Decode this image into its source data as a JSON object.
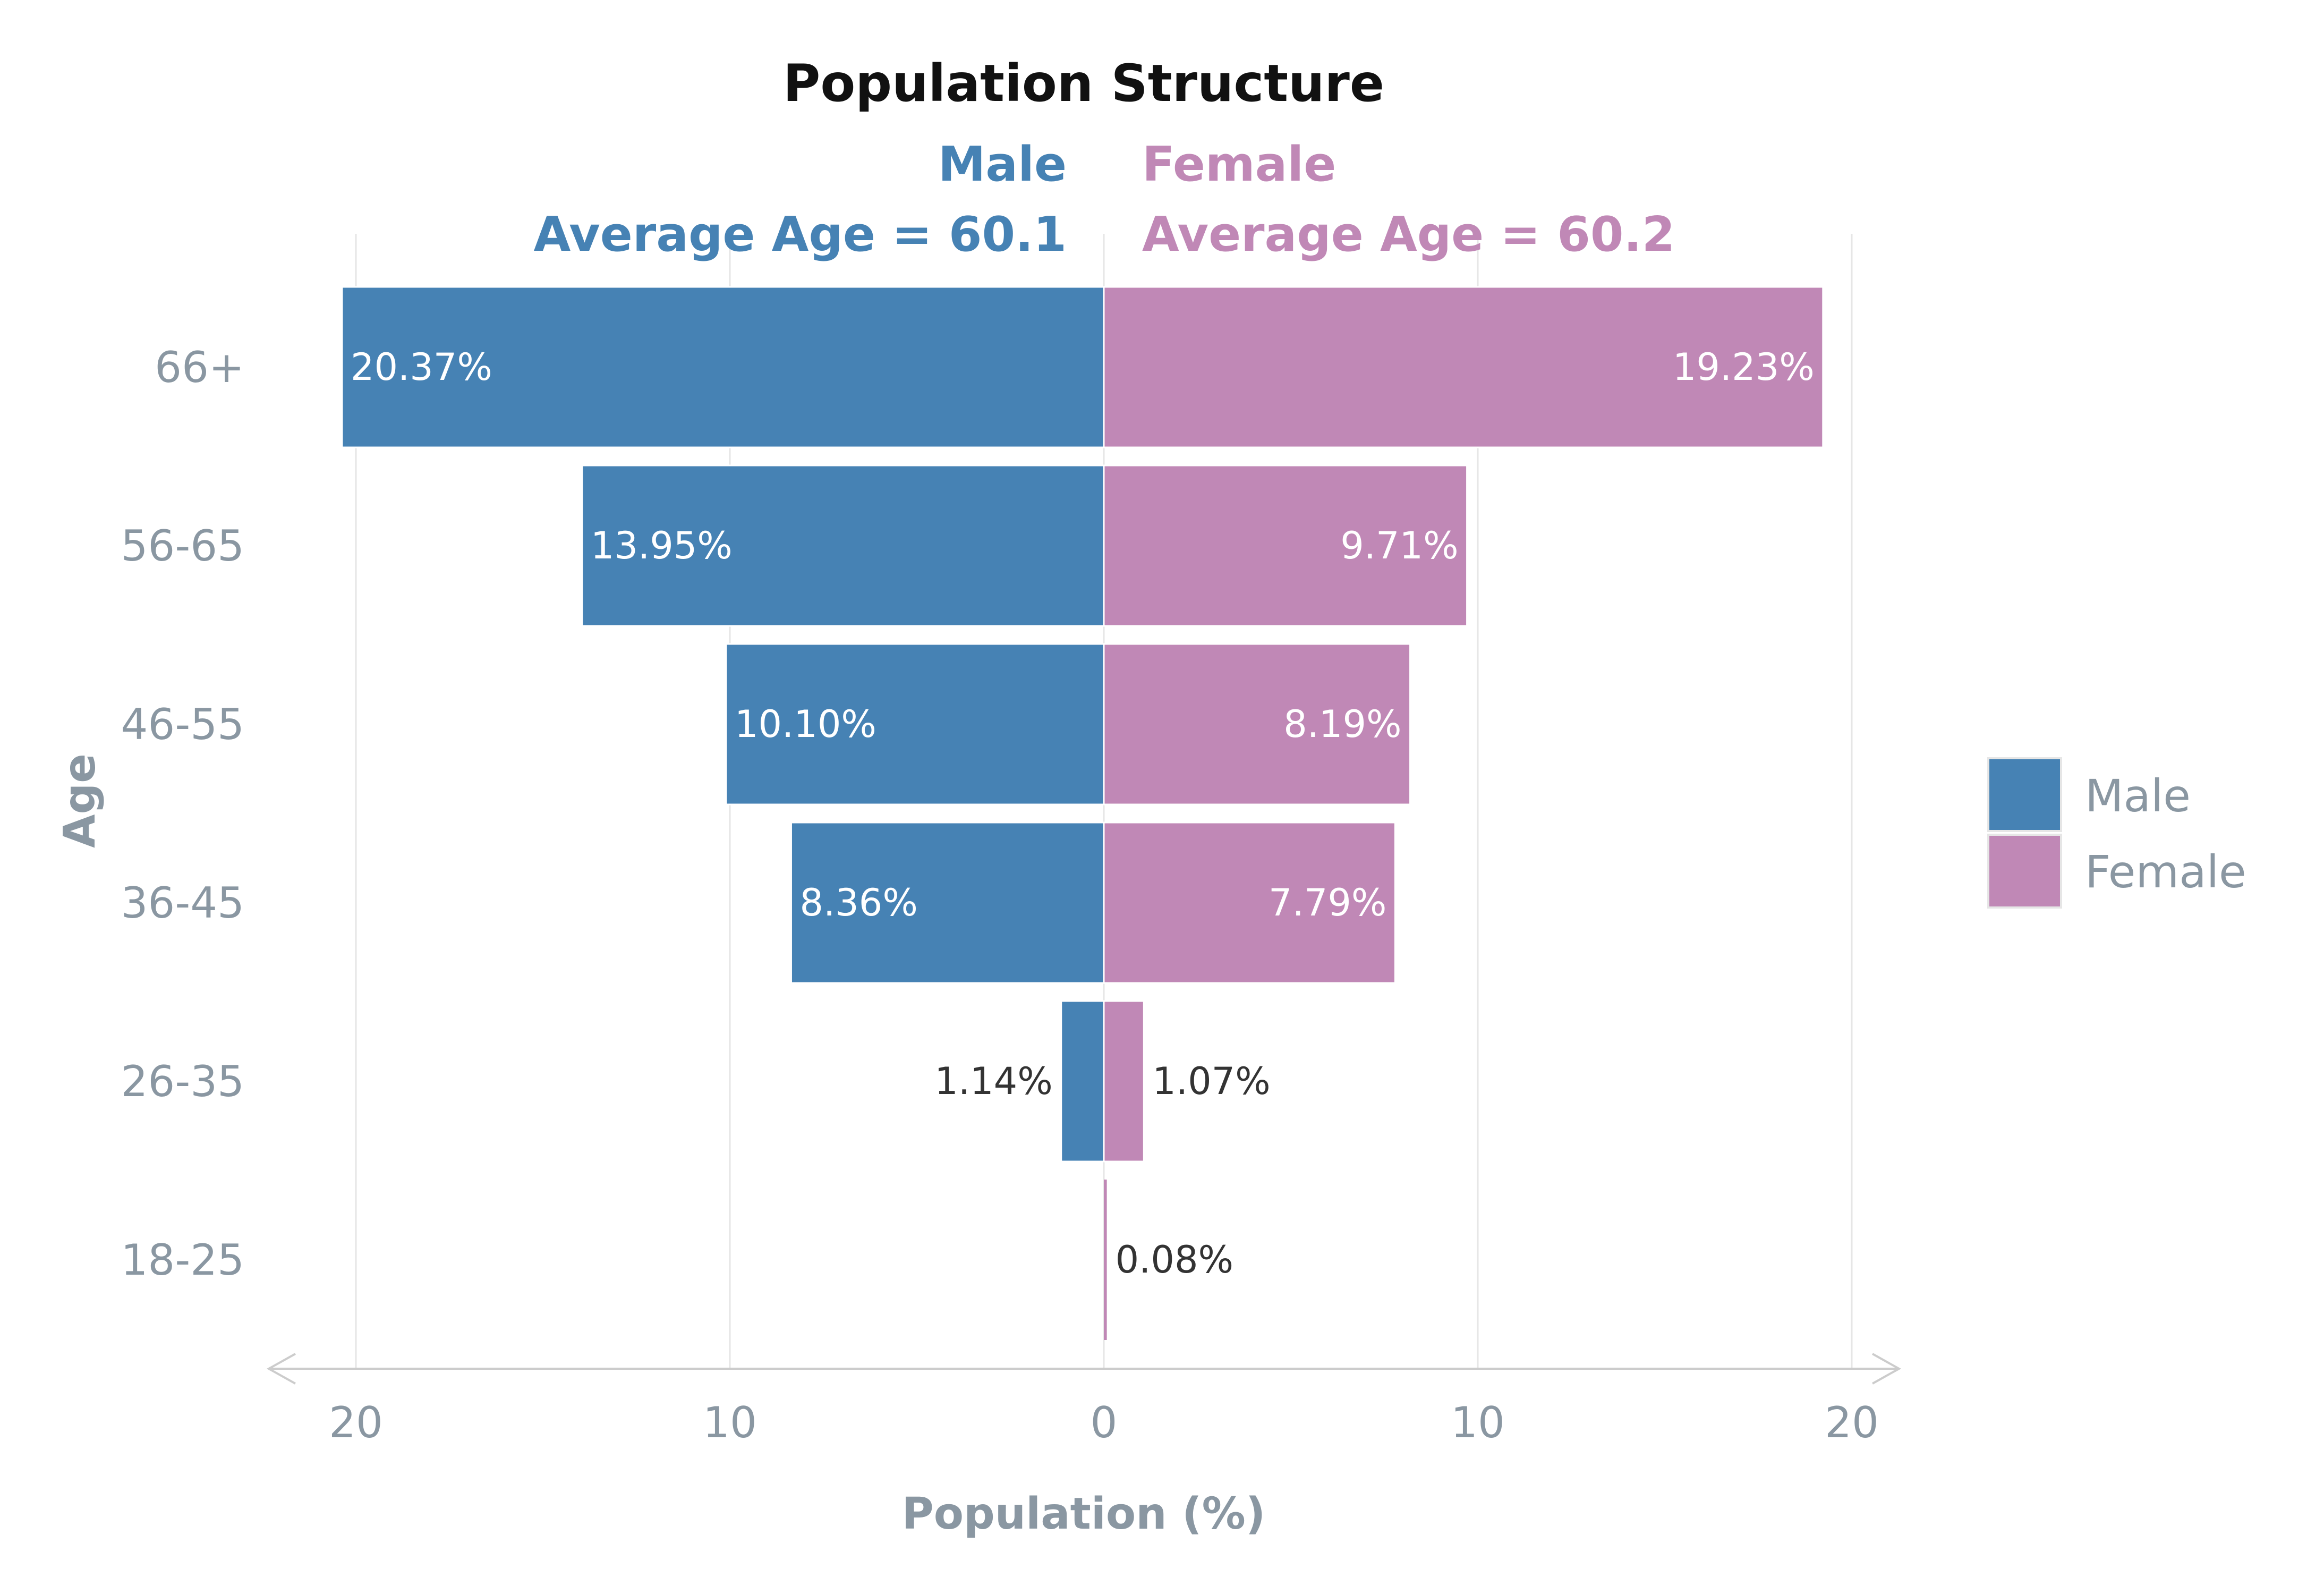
{
  "chart_data": {
    "type": "bar",
    "orientation": "horizontal",
    "title": "Population Structure",
    "xlabel": "Population (%)",
    "ylabel": "Age",
    "xlim": [
      -20,
      20
    ],
    "x_ticks": [
      -20,
      -10,
      0,
      10,
      20
    ],
    "x_tick_labels": [
      "20",
      "10",
      "0",
      "10",
      "20"
    ],
    "grid": "vertical",
    "legend_position": "right",
    "categories": [
      "66+",
      "56-65",
      "46-55",
      "36-45",
      "26-35",
      "18-25"
    ],
    "series": [
      {
        "name": "Male",
        "color": "#4682b4",
        "side": "left",
        "values": [
          20.37,
          13.95,
          10.1,
          8.36,
          1.14,
          0
        ],
        "labels": [
          "20.37%",
          "13.95%",
          "10.10%",
          "8.36%",
          "1.14%",
          ""
        ],
        "header": "Male",
        "average_label": "Average Age = 60.1"
      },
      {
        "name": "Female",
        "color": "#c088b6",
        "side": "right",
        "values": [
          19.23,
          9.71,
          8.19,
          7.79,
          1.07,
          0.08
        ],
        "labels": [
          "19.23%",
          "9.71%",
          "8.19%",
          "7.79%",
          "1.07%",
          "0.08%"
        ],
        "header": "Female",
        "average_label": "Average Age = 60.2"
      }
    ]
  }
}
